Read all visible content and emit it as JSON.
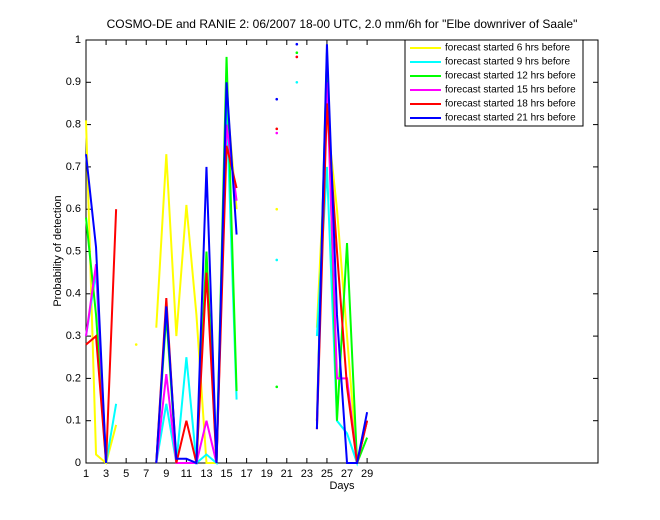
{
  "chart_data": {
    "type": "line",
    "title": "COSMO-DE and RANIE 2: 06/2007 18-00 UTC, 2.0 mm/6h for \"Elbe downriver of Saale\"",
    "x_label": "Days",
    "y_label": "Probability of detection",
    "x": [
      1,
      2,
      3,
      4,
      5,
      6,
      7,
      8,
      9,
      10,
      11,
      12,
      13,
      14,
      15,
      16,
      17,
      18,
      19,
      20,
      21,
      22,
      23,
      24,
      25,
      26,
      27,
      28,
      29,
      30
    ],
    "xlim": [
      1,
      52
    ],
    "ylim": [
      0,
      1
    ],
    "xticks": [
      1,
      3,
      5,
      7,
      9,
      11,
      13,
      15,
      17,
      19,
      21,
      23,
      25,
      27,
      29
    ],
    "yticks": [
      0,
      0.1,
      0.2,
      0.3,
      0.4,
      0.5,
      0.6,
      0.7,
      0.8,
      0.9,
      1
    ],
    "grid": false,
    "legend": "upper right",
    "series": [
      {
        "name": "forecast started 6 hrs before",
        "color": "#ffff00",
        "values": [
          0.81,
          0.02,
          0.0,
          0.09,
          null,
          0.28,
          null,
          0.32,
          0.73,
          0.3,
          0.61,
          0.35,
          0.0,
          0.0,
          0.87,
          0.6,
          null,
          null,
          null,
          0.6,
          null,
          null,
          null,
          0.32,
          0.82,
          0.6,
          0.3,
          0.0,
          0.1,
          null
        ]
      },
      {
        "name": "forecast started 9 hrs before",
        "color": "#00ffff",
        "values": [
          0.3,
          0.45,
          0.0,
          0.14,
          null,
          null,
          null,
          0.0,
          0.14,
          0.0,
          0.25,
          0.0,
          0.02,
          0.0,
          0.85,
          0.15,
          null,
          null,
          null,
          0.48,
          null,
          0.9,
          null,
          0.3,
          0.7,
          0.1,
          0.07,
          0.0,
          0.1,
          null
        ]
      },
      {
        "name": "forecast started 12 hrs before",
        "color": "#00ff00",
        "values": [
          0.58,
          0.35,
          0.0,
          null,
          null,
          null,
          null,
          0.0,
          0.35,
          0.0,
          0.0,
          0.0,
          0.5,
          0.0,
          0.96,
          0.17,
          null,
          null,
          null,
          0.18,
          null,
          0.97,
          null,
          0.1,
          0.97,
          0.1,
          0.52,
          0.0,
          0.06,
          null
        ]
      },
      {
        "name": "forecast started 15 hrs before",
        "color": "#ff00ff",
        "values": [
          0.3,
          0.47,
          0.0,
          null,
          null,
          null,
          null,
          0.0,
          0.21,
          0.0,
          0.0,
          0.0,
          0.1,
          0.0,
          0.8,
          0.62,
          null,
          null,
          null,
          0.78,
          null,
          0.96,
          null,
          0.1,
          0.9,
          0.2,
          0.2,
          0.0,
          0.1,
          null
        ]
      },
      {
        "name": "forecast started 18 hrs before",
        "color": "#ff0000",
        "values": [
          0.28,
          0.3,
          0.0,
          0.6,
          null,
          null,
          null,
          0.0,
          0.39,
          0.0,
          0.1,
          0.0,
          0.45,
          0.0,
          0.75,
          0.65,
          null,
          null,
          null,
          0.79,
          null,
          0.96,
          null,
          0.08,
          0.85,
          0.5,
          0.18,
          0.0,
          0.1,
          null
        ]
      },
      {
        "name": "forecast started 21 hrs before",
        "color": "#0000ff",
        "values": [
          0.73,
          0.51,
          0.0,
          null,
          null,
          null,
          null,
          0.0,
          0.37,
          0.01,
          0.01,
          0.0,
          0.7,
          0.0,
          0.9,
          0.54,
          null,
          null,
          null,
          0.86,
          null,
          0.99,
          null,
          0.08,
          0.99,
          0.35,
          0.0,
          0.0,
          0.12,
          null
        ]
      }
    ]
  }
}
